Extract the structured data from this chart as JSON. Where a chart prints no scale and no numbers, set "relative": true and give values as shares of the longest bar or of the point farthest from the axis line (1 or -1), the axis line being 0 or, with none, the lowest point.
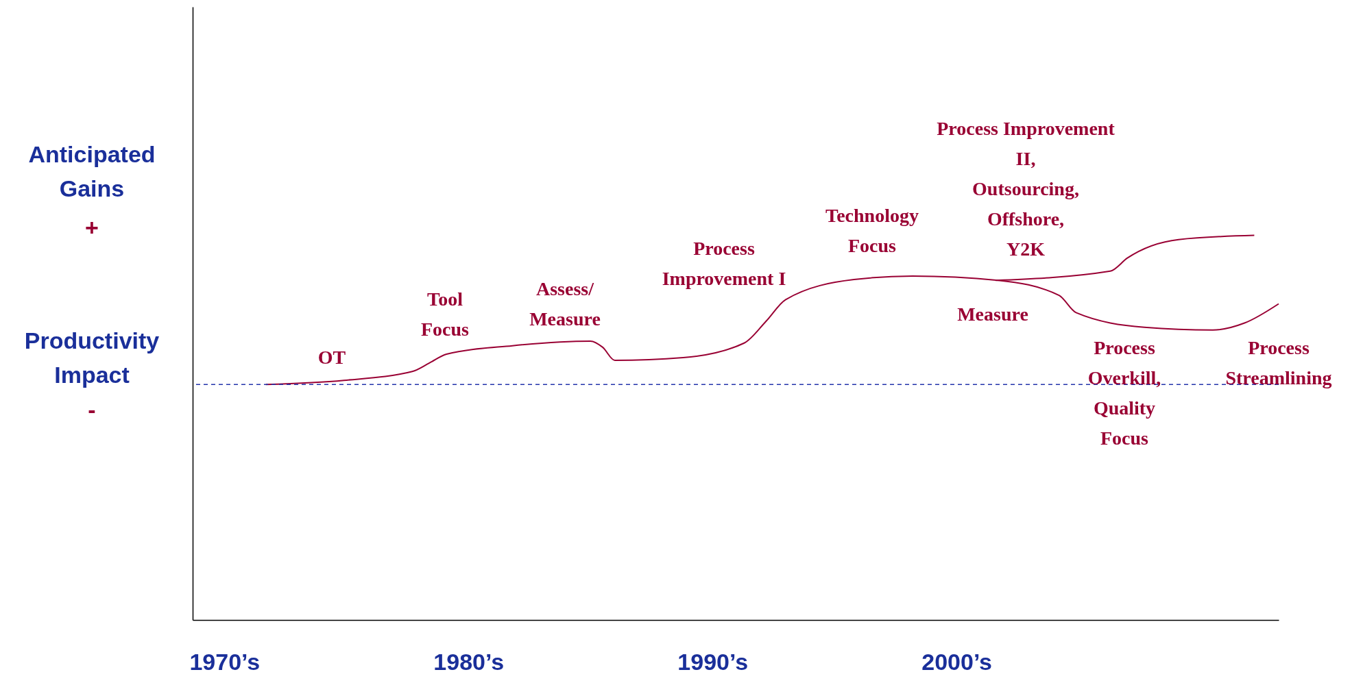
{
  "chart_data": {
    "type": "line",
    "relative": true,
    "xlim": [
      1968.7,
      2013.2
    ],
    "xticks": [
      {
        "value": 1970,
        "label": "1970’s"
      },
      {
        "value": 1980,
        "label": "1980’s"
      },
      {
        "value": 1990,
        "label": "1990’s"
      },
      {
        "value": 2000,
        "label": "2000’s"
      }
    ],
    "series": [
      {
        "color": "#990033",
        "x": [
          1971.7,
          1974.9,
          1977.7,
          1978.4,
          1979.1,
          1981.8,
          1985.0,
          1985.5,
          1986.0,
          1988.8,
          1991.3,
          1992.2,
          1993.0,
          1995.8,
          1998.2,
          2001.7,
          2004.2,
          2004.9,
          2007.7,
          2010.5,
          2011.8,
          2013.2
        ],
        "values": [
          0.612,
          0.623,
          0.646,
          0.668,
          0.691,
          0.713,
          0.725,
          0.709,
          0.675,
          0.682,
          0.72,
          0.777,
          0.833,
          0.885,
          0.894,
          0.883,
          0.844,
          0.799,
          0.761,
          0.754,
          0.772,
          0.822
        ]
      },
      {
        "color": "#990033",
        "x": [
          2001.6,
          2006.3,
          2007.0,
          2009.1,
          2012.2
        ],
        "values": [
          0.883,
          0.907,
          0.941,
          0.989,
          1.0
        ]
      }
    ],
    "ref_lines": [
      {
        "axis": "y",
        "value": 0.612,
        "color": "#2233aa",
        "line_style": "dashed"
      }
    ],
    "line_style": "solid",
    "annotations": [
      "OT",
      "Tool\nFocus",
      "Assess/\nMeasure",
      "Process\nImprovement I",
      "Technology\nFocus",
      "Process Improvement\nII,\nOutsourcing,\nOffshore,\nY2K",
      "Measure",
      "Process\nOverkill,\nQuality\nFocus",
      "Process\nStreamlining",
      "Anticipated Gains",
      "+",
      "Productivity Impact",
      "-"
    ]
  }
}
